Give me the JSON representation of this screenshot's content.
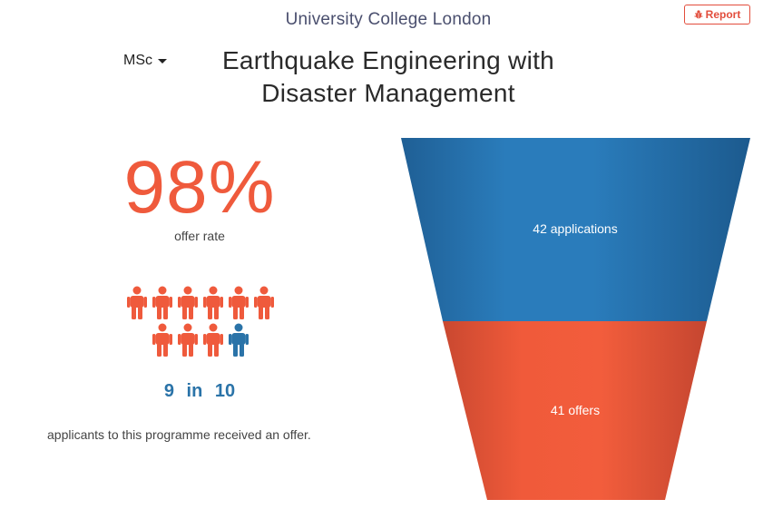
{
  "university": "University College London",
  "report": {
    "label": "Report",
    "icon": "bug-icon"
  },
  "degree": {
    "selected": "MSc"
  },
  "programme": {
    "title": "Earthquake Engineering with Disaster Management"
  },
  "stats": {
    "offer_rate": "98%",
    "offer_rate_label": "offer rate",
    "ratio": {
      "numerator": "9",
      "word": "in",
      "denominator": "10"
    },
    "caption": "applicants to this programme received an offer."
  },
  "pictogram": {
    "total": 10,
    "highlighted": 9,
    "highlight_color": "#ef5a3c",
    "other_color": "#2a73a8"
  },
  "chart_data": {
    "type": "funnel",
    "stages": [
      {
        "label": "42 applications",
        "value": 42,
        "color": "#2a73a8"
      },
      {
        "label": "41 offers",
        "value": 41,
        "color": "#ef5a3c"
      }
    ]
  },
  "colors": {
    "accent": "#ef5a3c",
    "blue": "#2a73a8"
  }
}
